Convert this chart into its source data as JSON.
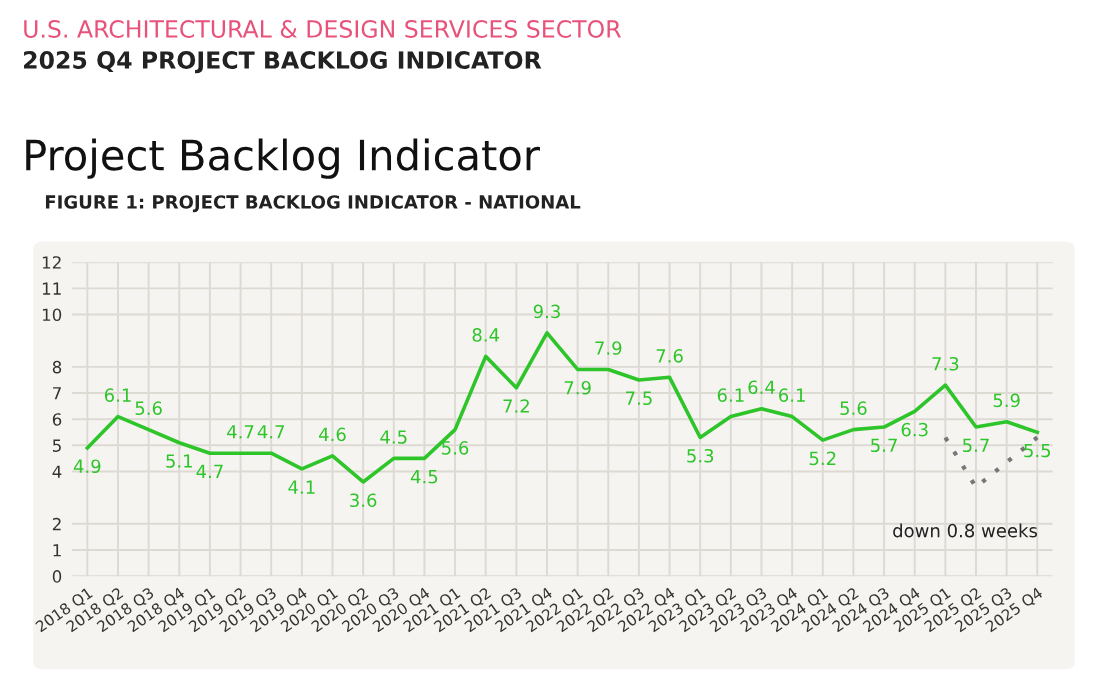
{
  "chart_data": {
    "type": "line",
    "title": "Project Backlog Indicator",
    "subtitle": "FIGURE 1: PROJECT BACKLOG INDICATOR - NATIONAL",
    "annotations": [
      "U.S. ARCHITECTURAL & DESIGN SERVICES SECTOR",
      "2025 Q4 PROJECT BACKLOG INDICATOR",
      "down 0.8 weeks"
    ],
    "categories": [
      "2018 Q1",
      "2018 Q2",
      "2018 Q3",
      "2018 Q4",
      "2019 Q1",
      "2019 Q2",
      "2019 Q3",
      "2019 Q4",
      "2020 Q1",
      "2020 Q2",
      "2020 Q3",
      "2020 Q4",
      "2021 Q1",
      "2021 Q2",
      "2021 Q3",
      "2021 Q4",
      "2022 Q1",
      "2022 Q2",
      "2022 Q3",
      "2022 Q4",
      "2023 Q1",
      "2023 Q2",
      "2023 Q3",
      "2023 Q4",
      "2024 Q1",
      "2024 Q2",
      "2024 Q3",
      "2024 Q4",
      "2025 Q1",
      "2025 Q2",
      "2025 Q3",
      "2025 Q4"
    ],
    "series": [
      {
        "color": "#2ec52a",
        "values": [
          4.9,
          6.1,
          5.6,
          5.1,
          4.7,
          4.7,
          4.7,
          4.1,
          4.6,
          3.6,
          4.5,
          4.5,
          5.6,
          8.4,
          7.2,
          9.3,
          7.9,
          7.9,
          7.5,
          7.6,
          5.3,
          6.1,
          6.4,
          6.1,
          5.2,
          5.6,
          5.7,
          6.3,
          7.3,
          5.7,
          5.9,
          5.5
        ],
        "value_labels": [
          "4.9",
          "6.1",
          "5.6",
          "5.1",
          "4.7",
          "4.7",
          "4.7",
          "4.1",
          "4.6",
          "3.6",
          "4.5",
          "4.5",
          "5.6",
          "8.4",
          "7.2",
          "9.3",
          "7.9",
          "7.9",
          "7.5",
          "7.6",
          "5.3",
          "6.1",
          "6.4",
          "6.1",
          "5.2",
          "5.6",
          "5.7",
          "6.3",
          "7.3",
          "5.7",
          "5.9",
          "5.5"
        ]
      },
      {
        "type": "line",
        "color": "#777777",
        "line_style": "dotted",
        "x": [
          "2025 Q1",
          "2025 Q2",
          "2025 Q4"
        ],
        "values": [
          5.3,
          3.4,
          5.3
        ]
      }
    ],
    "ylim": [
      0,
      12
    ],
    "yticks": [
      0,
      1,
      2,
      4,
      5,
      6,
      7,
      8,
      10,
      11,
      12
    ],
    "grid": true,
    "marker": "none",
    "line_style": "solid"
  }
}
